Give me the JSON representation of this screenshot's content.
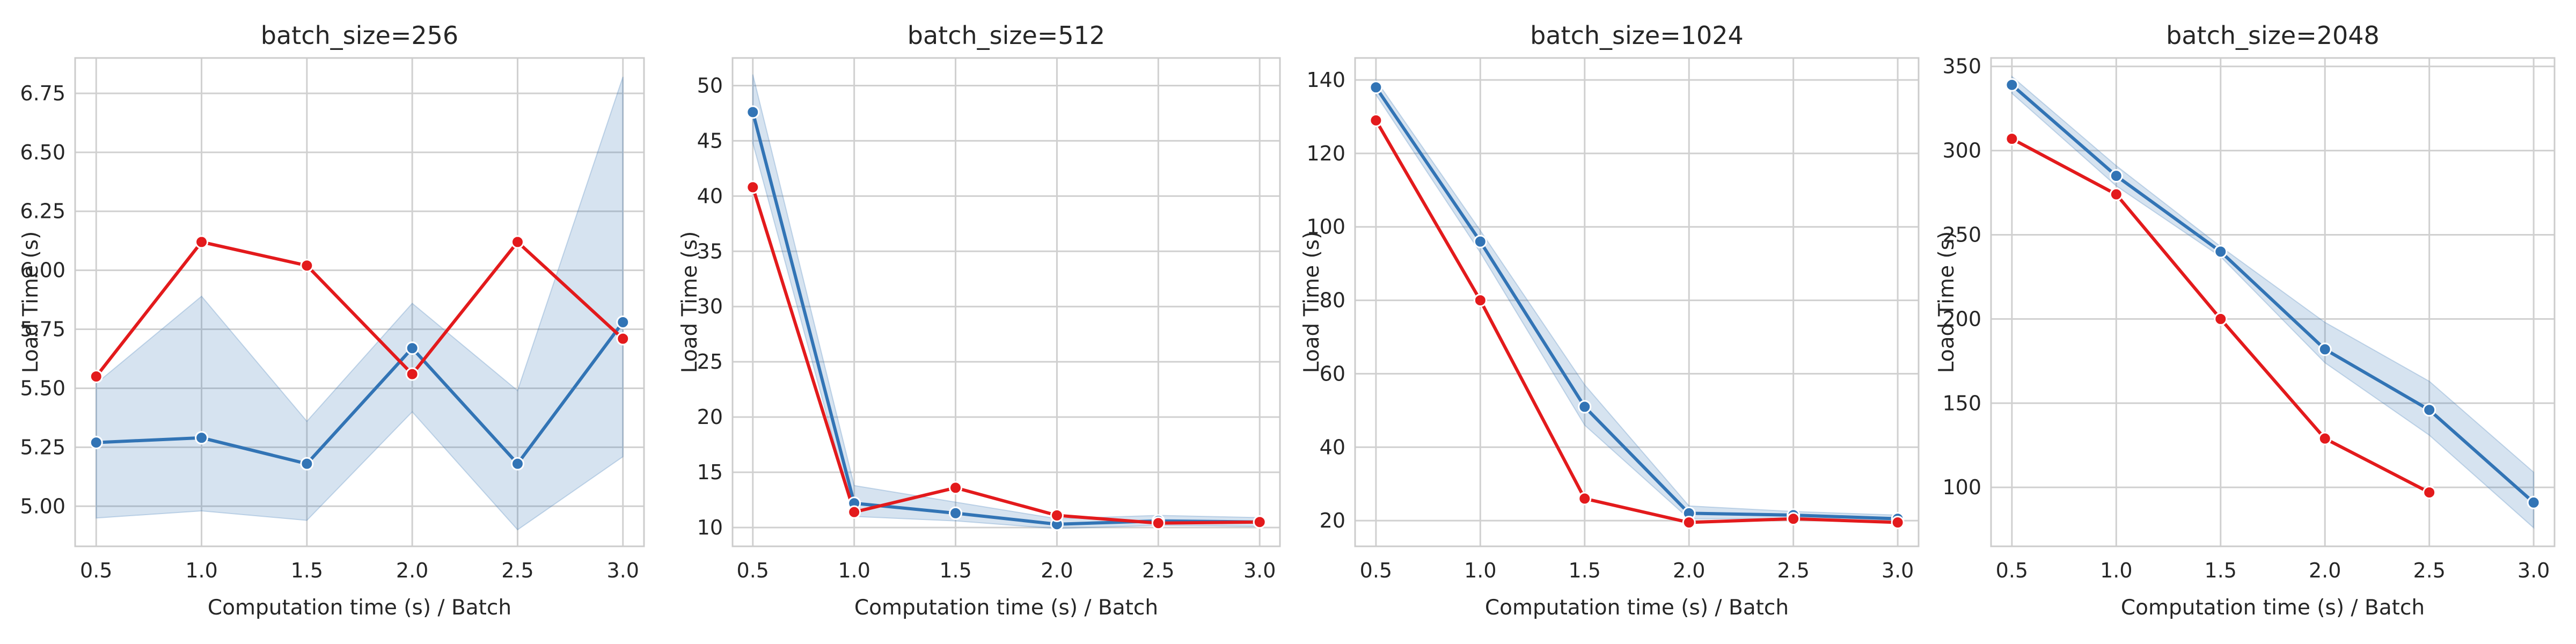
{
  "chart_data": [
    {
      "type": "line",
      "title": "batch_size=256",
      "xlabel": "Computation time (s) / Batch",
      "ylabel": "Load Time (s)",
      "xlim": [
        0.4,
        3.1
      ],
      "ylim": [
        4.83,
        6.9
      ],
      "xticks": [
        "0.5",
        "1.0",
        "1.5",
        "2.0",
        "2.5",
        "3.0"
      ],
      "xtick_values": [
        0.5,
        1.0,
        1.5,
        2.0,
        2.5,
        3.0
      ],
      "yticks": [
        "5.00",
        "5.25",
        "5.50",
        "5.75",
        "6.00",
        "6.25",
        "6.50",
        "6.75"
      ],
      "ytick_values": [
        5.0,
        5.25,
        5.5,
        5.75,
        6.0,
        6.25,
        6.5,
        6.75
      ],
      "grid": true,
      "series": [
        {
          "color": "#3274b5",
          "x": [
            0.5,
            1.0,
            1.5,
            2.0,
            2.5,
            3.0
          ],
          "y": [
            5.27,
            5.29,
            5.18,
            5.67,
            5.18,
            5.78
          ],
          "ci_lower": [
            4.95,
            4.98,
            4.94,
            5.4,
            4.9,
            5.21
          ],
          "ci_upper": [
            5.52,
            5.89,
            5.36,
            5.86,
            5.49,
            6.82
          ]
        },
        {
          "color": "#e31a1c",
          "x": [
            0.5,
            1.0,
            1.5,
            2.0,
            2.5,
            3.0
          ],
          "y": [
            5.55,
            6.12,
            6.02,
            5.56,
            6.12,
            5.71
          ]
        }
      ]
    },
    {
      "type": "line",
      "title": "batch_size=512",
      "xlabel": "Computation time (s) / Batch",
      "ylabel": "Load Time (s)",
      "xlim": [
        0.4,
        3.1
      ],
      "ylim": [
        8.3,
        52.5
      ],
      "xticks": [
        "0.5",
        "1.0",
        "1.5",
        "2.0",
        "2.5",
        "3.0"
      ],
      "xtick_values": [
        0.5,
        1.0,
        1.5,
        2.0,
        2.5,
        3.0
      ],
      "yticks": [
        "10",
        "15",
        "20",
        "25",
        "30",
        "35",
        "40",
        "45",
        "50"
      ],
      "ytick_values": [
        10,
        15,
        20,
        25,
        30,
        35,
        40,
        45,
        50
      ],
      "grid": true,
      "series": [
        {
          "color": "#3274b5",
          "x": [
            0.5,
            1.0,
            1.5,
            2.0,
            2.5,
            3.0
          ],
          "y": [
            47.6,
            12.2,
            11.3,
            10.3,
            10.6,
            10.5
          ],
          "ci_lower": [
            44.8,
            11.0,
            10.6,
            9.9,
            10.2,
            10.1
          ],
          "ci_upper": [
            51.0,
            13.8,
            12.3,
            10.8,
            11.1,
            10.9
          ]
        },
        {
          "color": "#e31a1c",
          "x": [
            0.5,
            1.0,
            1.5,
            2.0,
            2.5,
            3.0
          ],
          "y": [
            40.8,
            11.4,
            13.6,
            11.1,
            10.4,
            10.5
          ]
        }
      ]
    },
    {
      "type": "line",
      "title": "batch_size=1024",
      "xlabel": "Computation time (s) / Batch",
      "ylabel": "Load Time (s)",
      "xlim": [
        0.4,
        3.1
      ],
      "ylim": [
        13,
        146
      ],
      "xticks": [
        "0.5",
        "1.0",
        "1.5",
        "2.0",
        "2.5",
        "3.0"
      ],
      "xtick_values": [
        0.5,
        1.0,
        1.5,
        2.0,
        2.5,
        3.0
      ],
      "yticks": [
        "20",
        "40",
        "60",
        "80",
        "100",
        "120",
        "140"
      ],
      "ytick_values": [
        20,
        40,
        60,
        80,
        100,
        120,
        140
      ],
      "grid": true,
      "series": [
        {
          "color": "#3274b5",
          "x": [
            0.5,
            1.0,
            1.5,
            2.0,
            2.5,
            3.0
          ],
          "y": [
            138,
            96,
            51,
            22,
            21.5,
            20.5
          ],
          "ci_lower": [
            136,
            93,
            46,
            20.5,
            20.5,
            19.5
          ],
          "ci_upper": [
            140,
            99,
            57,
            24,
            22.5,
            21.5
          ]
        },
        {
          "color": "#e31a1c",
          "x": [
            0.5,
            1.0,
            1.5,
            2.0,
            2.5,
            3.0
          ],
          "y": [
            129,
            80,
            26,
            19.5,
            20.5,
            19.5
          ]
        }
      ]
    },
    {
      "type": "line",
      "title": "batch_size=2048",
      "xlabel": "Computation time (s) / Batch",
      "ylabel": "Load Time (s)",
      "xlim": [
        0.4,
        3.1
      ],
      "ylim": [
        65,
        355
      ],
      "xticks": [
        "0.5",
        "1.0",
        "1.5",
        "2.0",
        "2.5",
        "3.0"
      ],
      "xtick_values": [
        0.5,
        1.0,
        1.5,
        2.0,
        2.5,
        3.0
      ],
      "yticks": [
        "100",
        "150",
        "200",
        "250",
        "300",
        "350"
      ],
      "ytick_values": [
        100,
        150,
        200,
        250,
        300,
        350
      ],
      "grid": true,
      "series": [
        {
          "color": "#3274b5",
          "x": [
            0.5,
            1.0,
            1.5,
            2.0,
            2.5,
            3.0
          ],
          "y": [
            339,
            285,
            240,
            182,
            146,
            91
          ],
          "ci_lower": [
            334,
            279,
            237,
            174,
            131,
            76
          ],
          "ci_upper": [
            344,
            291,
            243,
            198,
            163,
            109
          ]
        },
        {
          "color": "#e31a1c",
          "x": [
            0.5,
            1.0,
            1.5,
            2.0,
            2.5
          ],
          "y": [
            307,
            274,
            200,
            129,
            97
          ]
        }
      ]
    }
  ]
}
